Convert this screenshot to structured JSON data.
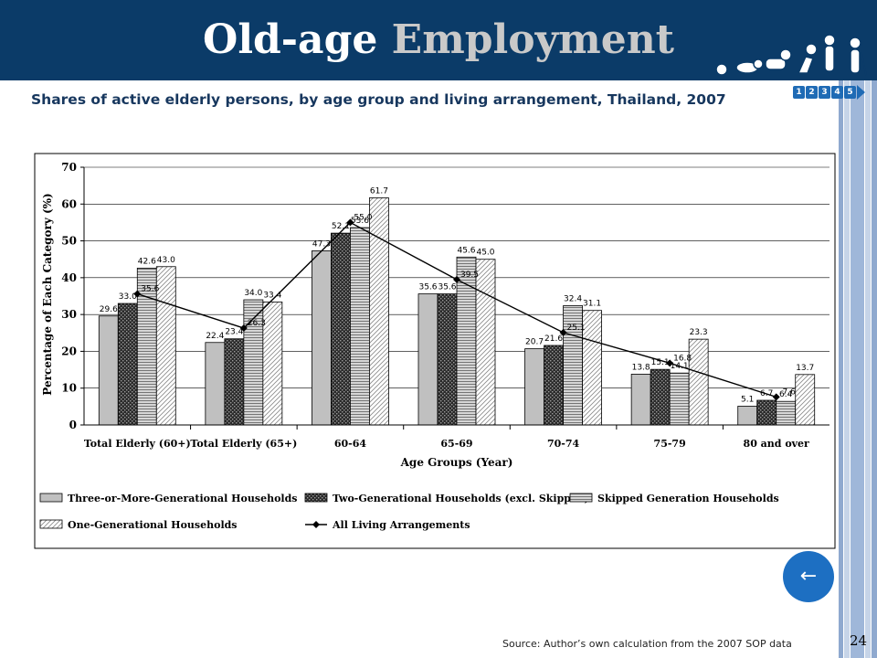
{
  "header": {
    "title_part1": "Old-age",
    "title_part2": "Employment"
  },
  "subtitle": "Shares of active elderly persons, by age group and living arrangement, Thailand, 2007",
  "nav": {
    "pages": [
      "1",
      "2",
      "3",
      "4",
      "5"
    ]
  },
  "back_button": {
    "icon": "left-arrow-icon",
    "glyph": "←"
  },
  "footer": {
    "source": "Source: Author’s own calculation from the 2007 SOP data",
    "page_number": "24"
  },
  "colors": {
    "header": "#0b3b68",
    "subtitle": "#17375e",
    "accent": "#1d6fc2"
  },
  "chart_data": {
    "type": "bar",
    "title": "",
    "xlabel": "Age Groups (Year)",
    "ylabel": "Percentage of Each Category (%)",
    "ylim": [
      0,
      70
    ],
    "yticks": [
      0,
      10,
      20,
      30,
      40,
      50,
      60,
      70
    ],
    "grid": true,
    "legend_position": "bottom",
    "categories": [
      "Total Elderly (60+)",
      "Total Elderly (65+)",
      "60-64",
      "65-69",
      "70-74",
      "75-79",
      "80 and over"
    ],
    "series": [
      {
        "name": "Three-or-More-Generational Households",
        "type": "bar",
        "pattern": "solid-gray",
        "values": [
          29.6,
          22.4,
          47.3,
          35.6,
          20.7,
          13.8,
          5.1
        ],
        "labels": [
          "29.6",
          "22.4",
          "47.3",
          "35.6",
          "20.7",
          "13.8",
          "5.1"
        ]
      },
      {
        "name": "Two-Generational Households (excl. Skipped)",
        "type": "bar",
        "pattern": "dark-dotted",
        "values": [
          33.0,
          23.4,
          52.1,
          35.6,
          21.6,
          15.1,
          6.7
        ],
        "labels": [
          "33.0",
          "23.4",
          "52.1",
          "35.6",
          "21.6",
          "15.1",
          "6.7"
        ]
      },
      {
        "name": "Skipped Generation Households",
        "type": "bar",
        "pattern": "horizontal-lines",
        "values": [
          42.6,
          34.0,
          53.6,
          45.6,
          32.4,
          14.1,
          6.4
        ],
        "labels": [
          "42.6",
          "34.0",
          "53.6",
          "45.6",
          "32.4",
          "14.1",
          "6.4"
        ]
      },
      {
        "name": "One-Generational Households",
        "type": "bar",
        "pattern": "diagonal-hatch",
        "values": [
          43.0,
          33.4,
          61.7,
          45.0,
          31.1,
          23.3,
          13.7
        ],
        "labels": [
          "43.0",
          "33.4",
          "61.7",
          "45.0",
          "31.1",
          "23.3",
          "13.7"
        ]
      },
      {
        "name": "All Living Arrangements",
        "type": "line",
        "marker": "diamond",
        "values": [
          35.6,
          26.3,
          55.0,
          39.5,
          25.1,
          16.8,
          7.6
        ],
        "labels": [
          "35.6",
          "26.3",
          "55.0",
          "39.5",
          "25.1",
          "16.8",
          "7.6"
        ]
      }
    ]
  }
}
